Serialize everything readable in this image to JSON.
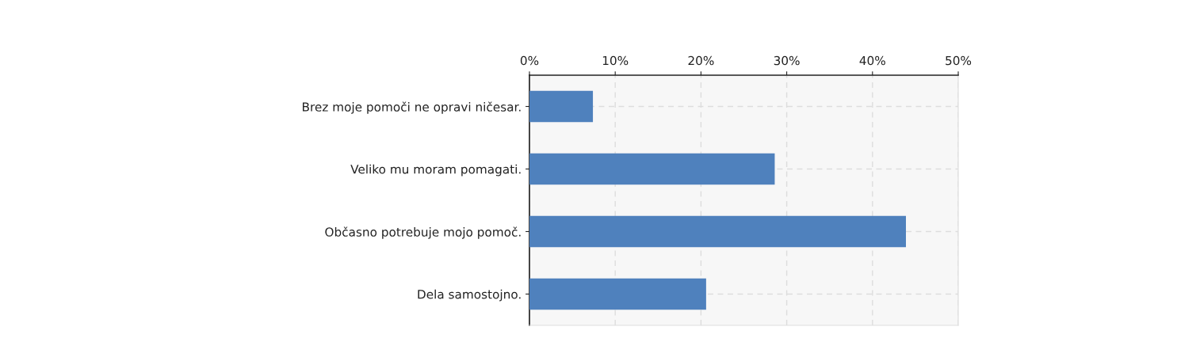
{
  "chart_data": {
    "type": "bar",
    "orientation": "horizontal",
    "categories": [
      "Brez moje pomoči ne opravi ničesar.",
      "Veliko mu moram pomagati.",
      "Občasno potrebuje mojo pomoč.",
      "Dela samostojno."
    ],
    "values": [
      7.4,
      28.6,
      43.9,
      20.6
    ],
    "color": "#4f81bd",
    "xlim": [
      0,
      50
    ],
    "xticks": [
      {
        "value": 0,
        "label": "0%"
      },
      {
        "value": 10,
        "label": "10%"
      },
      {
        "value": 20,
        "label": "20%"
      },
      {
        "value": 30,
        "label": "30%"
      },
      {
        "value": 40,
        "label": "40%"
      },
      {
        "value": 50,
        "label": "50%"
      }
    ],
    "grid": true
  }
}
